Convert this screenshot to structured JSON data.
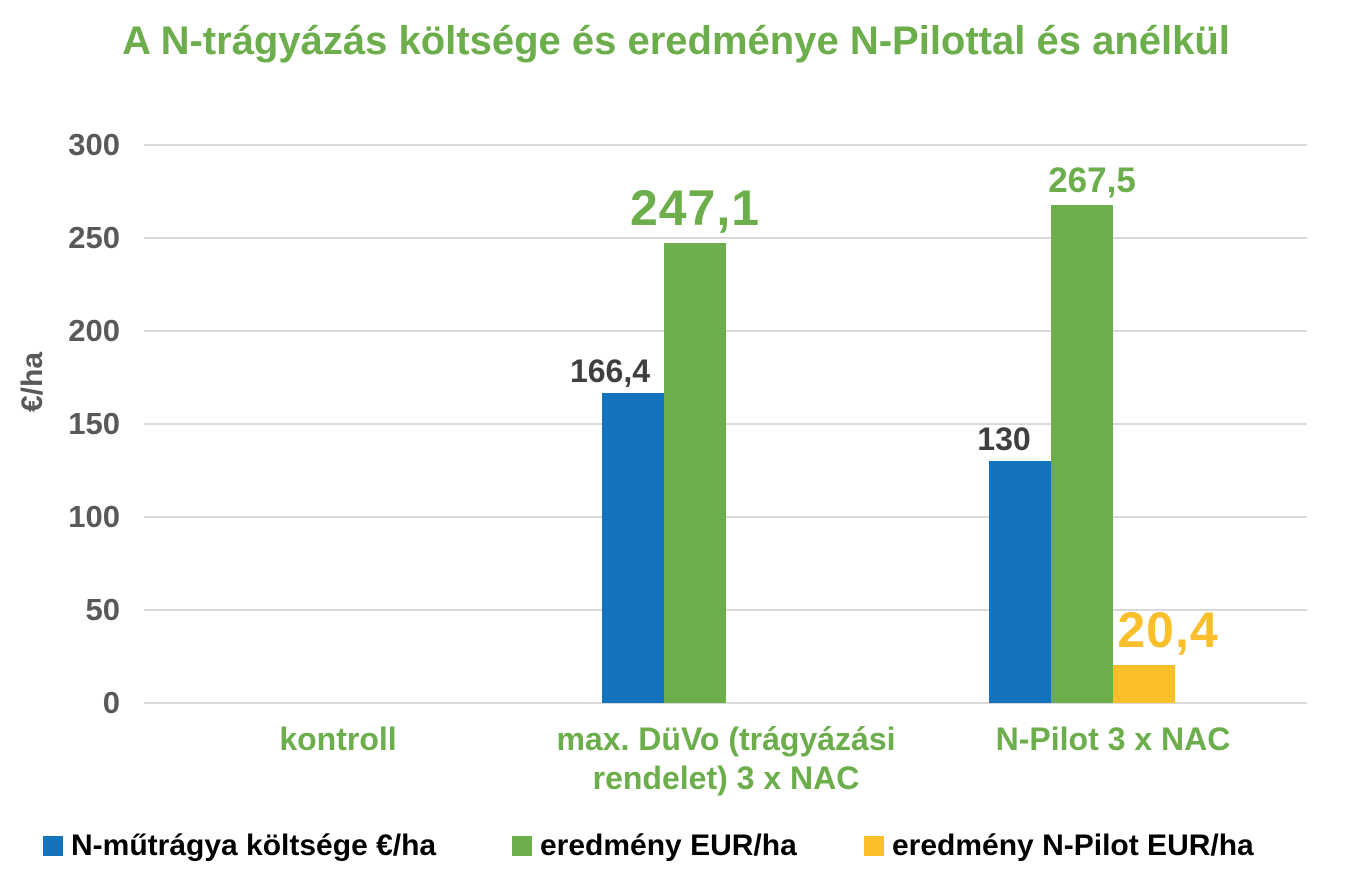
{
  "chart_data": {
    "type": "bar",
    "title": "A N-trágyázás költsége és eredménye N-Pilottal és anélkül",
    "xlabel": "",
    "ylabel": "€/ha",
    "ylim": [
      0,
      300
    ],
    "yticks": [
      0,
      50,
      100,
      150,
      200,
      250,
      300
    ],
    "grid": "horizontal",
    "legend_position": "bottom",
    "categories": [
      "kontroll",
      "max. DüVo (trágyázási rendelet) 3 x NAC",
      "N-Pilot 3 x NAC"
    ],
    "series": [
      {
        "name": "N-műtrágya költsége €/ha",
        "color": "#1473BD",
        "label_color": "#3F3F3F",
        "values": [
          null,
          166.4,
          130
        ],
        "labels": [
          "",
          "166,4",
          "130"
        ]
      },
      {
        "name": "eredmény EUR/ha",
        "color": "#6CAD4C",
        "label_color": "#6CAD4C",
        "values": [
          null,
          247.1,
          267.5
        ],
        "labels": [
          "",
          "247,1",
          "267,5"
        ]
      },
      {
        "name": "eredmény N-Pilot EUR/ha",
        "color": "#FCBF2C",
        "label_color": "#FCBF2C",
        "values": [
          null,
          null,
          20.4
        ],
        "labels": [
          "",
          "",
          "20,4"
        ]
      }
    ]
  },
  "colors": {
    "title_text": "#6CAD4C",
    "axis_text": "#595959",
    "category_text": "#6CAD4C",
    "dark_label": "#3F3F3F",
    "gridline": "#D9D9D9",
    "legend_text": "#000000",
    "background": "#FFFFFF"
  }
}
